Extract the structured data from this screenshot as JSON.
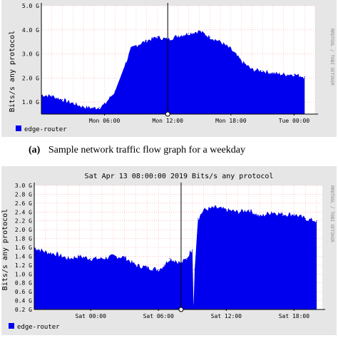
{
  "caption_a": {
    "label": "(a)",
    "text": "Sample network traffic flow graph for a weekday"
  },
  "colors": {
    "fill": "#0000ee",
    "grid": "#ff9f9f",
    "panel_bg": "#e6e6e6",
    "plot_bg": "#ffffff",
    "cursor": "#000000"
  },
  "chart_data": [
    {
      "type": "area",
      "title": "",
      "ylabel": "Bits/s any protocol",
      "watermark": "RRDTOOL / TOBI OETIKER",
      "ylim": [
        0.5,
        5.0
      ],
      "y_ticks": [
        {
          "v": 1.0,
          "label": "1.0 G"
        },
        {
          "v": 2.0,
          "label": "2.0 G"
        },
        {
          "v": 3.0,
          "label": "3.0 G"
        },
        {
          "v": 4.0,
          "label": "4.0 G"
        },
        {
          "v": 5.0,
          "label": "5.0 G"
        }
      ],
      "xlim": [
        0,
        26
      ],
      "x_ticks": [
        {
          "v": 6,
          "label": "Mon 06:00"
        },
        {
          "v": 12,
          "label": "Mon 12:00"
        },
        {
          "v": 18,
          "label": "Mon 18:00"
        },
        {
          "v": 24,
          "label": "Tue 00:00"
        }
      ],
      "cursor_x": 12,
      "legend": [
        {
          "name": "edge-router"
        }
      ],
      "series": [
        {
          "name": "edge-router",
          "x": [
            0,
            1,
            2,
            3,
            4,
            5,
            5.5,
            6,
            7,
            8,
            8.5,
            9,
            10,
            11,
            12,
            13,
            14,
            15,
            16,
            17,
            18,
            19,
            20,
            21,
            22,
            23,
            24,
            25
          ],
          "values": [
            1.3,
            1.25,
            1.1,
            0.95,
            0.8,
            0.75,
            0.78,
            0.9,
            1.45,
            2.6,
            3.2,
            3.35,
            3.55,
            3.7,
            3.6,
            3.75,
            3.85,
            3.95,
            3.7,
            3.5,
            3.2,
            2.7,
            2.35,
            2.3,
            2.2,
            2.15,
            2.15,
            2.05
          ]
        }
      ]
    },
    {
      "type": "area",
      "title": "Sat Apr 13 08:00:00 2019 Bits/s any protocol",
      "ylabel": "Bits/s any protocol",
      "watermark": "RRDTOOL / TOBI OETIKER",
      "ylim": [
        0.2,
        3.0
      ],
      "y_ticks": [
        {
          "v": 0.2,
          "label": "0.2 G"
        },
        {
          "v": 0.4,
          "label": "0.4 G"
        },
        {
          "v": 0.6,
          "label": "0.6 G"
        },
        {
          "v": 0.8,
          "label": "0.8 G"
        },
        {
          "v": 1.0,
          "label": "1.0 G"
        },
        {
          "v": 1.2,
          "label": "1.2 G"
        },
        {
          "v": 1.4,
          "label": "1.4 G"
        },
        {
          "v": 1.6,
          "label": "1.6 G"
        },
        {
          "v": 1.8,
          "label": "1.8 G"
        },
        {
          "v": 2.0,
          "label": "2.0 G"
        },
        {
          "v": 2.2,
          "label": "2.2 G"
        },
        {
          "v": 2.4,
          "label": "2.4 G"
        },
        {
          "v": 2.6,
          "label": "2.6 G"
        },
        {
          "v": 2.8,
          "label": "2.8 G"
        },
        {
          "v": 3.0,
          "label": "3.0 G"
        }
      ],
      "xlim": [
        -5,
        20.5
      ],
      "x_ticks": [
        {
          "v": 0,
          "label": "Sat 00:00"
        },
        {
          "v": 6,
          "label": "Sat 06:00"
        },
        {
          "v": 12,
          "label": "Sat 12:00"
        },
        {
          "v": 18,
          "label": "Sat 18:00"
        }
      ],
      "cursor_x": 8,
      "legend": [
        {
          "name": "edge-router"
        }
      ],
      "series": [
        {
          "name": "edge-router",
          "x": [
            -5,
            -4,
            -3,
            -2,
            -1,
            0,
            1,
            2,
            3,
            4,
            5,
            6,
            6.5,
            7,
            7.5,
            8,
            8.5,
            8.8,
            9.0,
            9.1,
            9.2,
            9.5,
            10,
            11,
            12,
            13,
            14,
            15,
            16,
            17,
            18,
            19,
            20
          ],
          "values": [
            1.6,
            1.5,
            1.45,
            1.35,
            1.4,
            1.35,
            1.35,
            1.4,
            1.38,
            1.2,
            1.15,
            1.1,
            1.2,
            1.35,
            1.3,
            1.25,
            1.35,
            1.5,
            1.55,
            0.3,
            1.1,
            2.25,
            2.45,
            2.5,
            2.45,
            2.4,
            2.45,
            2.3,
            2.4,
            2.35,
            2.35,
            2.25,
            2.2
          ]
        }
      ]
    }
  ]
}
